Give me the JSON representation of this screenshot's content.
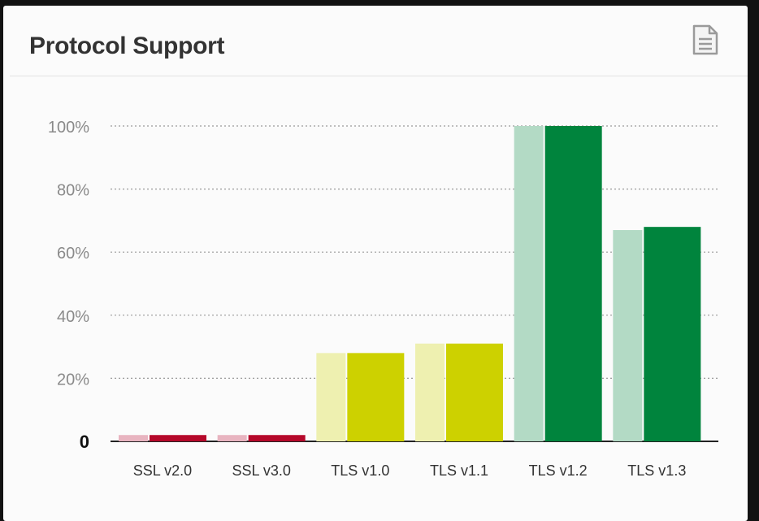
{
  "widget": {
    "title": "Protocol Support",
    "icon": "document-icon"
  },
  "chart_data": {
    "type": "bar",
    "title": "Protocol Support",
    "xlabel": "",
    "ylabel": "",
    "ylim": [
      0,
      100
    ],
    "yticks": [
      "0",
      "20%",
      "40%",
      "60%",
      "80%",
      "100%"
    ],
    "grid": true,
    "categories": [
      "SSL v2.0",
      "SSL v3.0",
      "TLS v1.0",
      "TLS v1.1",
      "TLS v1.2",
      "TLS v1.3"
    ],
    "series": [
      {
        "values": [
          2,
          2,
          28,
          31,
          100,
          67
        ],
        "colors": [
          "#e8b4c0",
          "#e8b4c0",
          "#eef0b0",
          "#eef0b0",
          "#b3dac5",
          "#b3dac5"
        ]
      },
      {
        "values": [
          2,
          2,
          28,
          31,
          100,
          68
        ],
        "colors": [
          "#b5082a",
          "#b5082a",
          "#cdd100",
          "#cdd100",
          "#00843d",
          "#00843d"
        ]
      }
    ]
  }
}
